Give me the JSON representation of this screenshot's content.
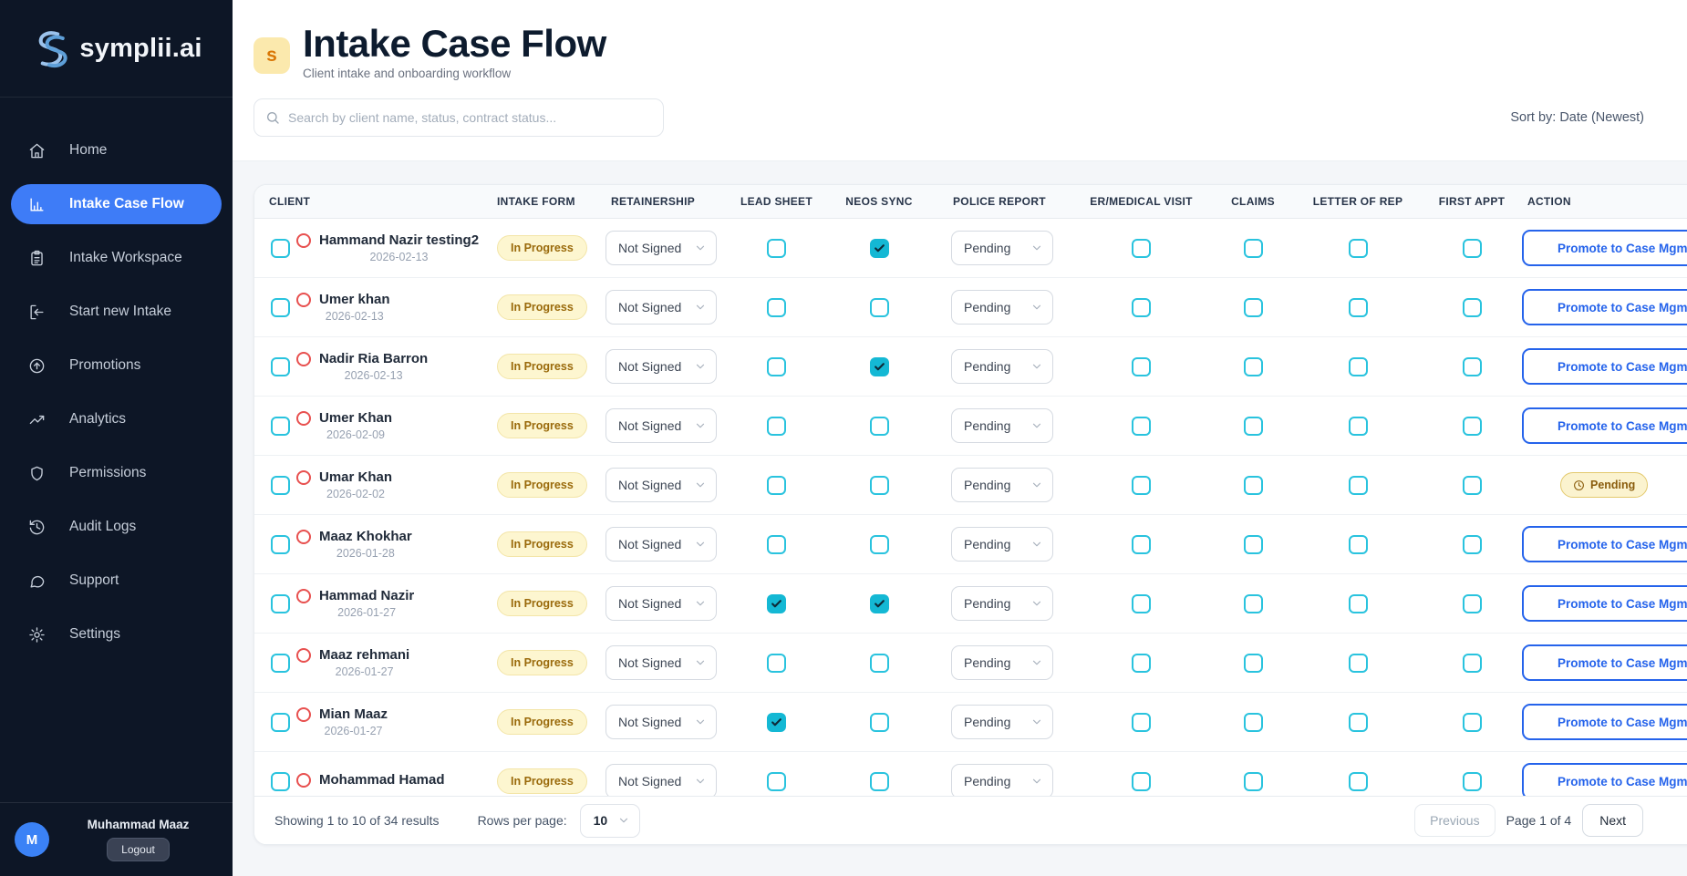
{
  "brand": {
    "logo_text": "symplii.ai"
  },
  "sidebar": {
    "items": [
      {
        "label": "Home",
        "icon": "home",
        "active": false
      },
      {
        "label": "Intake Case Flow",
        "icon": "bar-chart",
        "active": true
      },
      {
        "label": "Intake Workspace",
        "icon": "clipboard",
        "active": false
      },
      {
        "label": "Start new Intake",
        "icon": "log-in",
        "active": false
      },
      {
        "label": "Promotions",
        "icon": "arrow-up-circle",
        "active": false
      },
      {
        "label": "Analytics",
        "icon": "trending-up",
        "active": false
      },
      {
        "label": "Permissions",
        "icon": "shield",
        "active": false
      },
      {
        "label": "Audit Logs",
        "icon": "history",
        "active": false
      },
      {
        "label": "Support",
        "icon": "message-circle",
        "active": false
      },
      {
        "label": "Settings",
        "icon": "gear",
        "active": false
      }
    ],
    "user": {
      "initial": "M",
      "name": "Muhammad Maaz",
      "logout_label": "Logout"
    }
  },
  "header": {
    "app_icon_letter": "s",
    "title": "Intake Case Flow",
    "subtitle": "Client intake and onboarding workflow",
    "search_placeholder": "Search by client name, status, contract status...",
    "sort_label": "Sort by: Date (Newest)"
  },
  "table": {
    "columns": [
      "CLIENT",
      "INTAKE FORM",
      "RETAINERSHIP",
      "LEAD SHEET",
      "NEOS SYNC",
      "POLICE REPORT",
      "ER/MEDICAL VISIT",
      "CLAIMS",
      "LETTER OF REP",
      "FIRST APPT",
      "ACTION"
    ],
    "rows": [
      {
        "name": "Hammand Nazir testing2",
        "date": "2026-02-13",
        "intake_form": "In Progress",
        "retainership": "Not Signed",
        "lead_sheet": false,
        "neos_sync": true,
        "police_report": "Pending",
        "er_medical_visit": false,
        "claims": false,
        "letter_of_rep": false,
        "first_appt": false,
        "action": {
          "type": "button",
          "label": "Promote to Case Mgmt"
        }
      },
      {
        "name": "Umer khan",
        "date": "2026-02-13",
        "intake_form": "In Progress",
        "retainership": "Not Signed",
        "lead_sheet": false,
        "neos_sync": false,
        "police_report": "Pending",
        "er_medical_visit": false,
        "claims": false,
        "letter_of_rep": false,
        "first_appt": false,
        "action": {
          "type": "button",
          "label": "Promote to Case Mgmt"
        }
      },
      {
        "name": "Nadir Ria Barron",
        "date": "2026-02-13",
        "intake_form": "In Progress",
        "retainership": "Not Signed",
        "lead_sheet": false,
        "neos_sync": true,
        "police_report": "Pending",
        "er_medical_visit": false,
        "claims": false,
        "letter_of_rep": false,
        "first_appt": false,
        "action": {
          "type": "button",
          "label": "Promote to Case Mgmt"
        }
      },
      {
        "name": "Umer Khan",
        "date": "2026-02-09",
        "intake_form": "In Progress",
        "retainership": "Not Signed",
        "lead_sheet": false,
        "neos_sync": false,
        "police_report": "Pending",
        "er_medical_visit": false,
        "claims": false,
        "letter_of_rep": false,
        "first_appt": false,
        "action": {
          "type": "button",
          "label": "Promote to Case Mgmt"
        }
      },
      {
        "name": "Umar Khan",
        "date": "2026-02-02",
        "intake_form": "In Progress",
        "retainership": "Not Signed",
        "lead_sheet": false,
        "neos_sync": false,
        "police_report": "Pending",
        "er_medical_visit": false,
        "claims": false,
        "letter_of_rep": false,
        "first_appt": false,
        "action": {
          "type": "badge",
          "label": "Pending"
        }
      },
      {
        "name": "Maaz Khokhar",
        "date": "2026-01-28",
        "intake_form": "In Progress",
        "retainership": "Not Signed",
        "lead_sheet": false,
        "neos_sync": false,
        "police_report": "Pending",
        "er_medical_visit": false,
        "claims": false,
        "letter_of_rep": false,
        "first_appt": false,
        "action": {
          "type": "button",
          "label": "Promote to Case Mgmt"
        }
      },
      {
        "name": "Hammad Nazir",
        "date": "2026-01-27",
        "intake_form": "In Progress",
        "retainership": "Not Signed",
        "lead_sheet": true,
        "neos_sync": true,
        "police_report": "Pending",
        "er_medical_visit": false,
        "claims": false,
        "letter_of_rep": false,
        "first_appt": false,
        "action": {
          "type": "button",
          "label": "Promote to Case Mgmt"
        }
      },
      {
        "name": "Maaz rehmani",
        "date": "2026-01-27",
        "intake_form": "In Progress",
        "retainership": "Not Signed",
        "lead_sheet": false,
        "neos_sync": false,
        "police_report": "Pending",
        "er_medical_visit": false,
        "claims": false,
        "letter_of_rep": false,
        "first_appt": false,
        "action": {
          "type": "button",
          "label": "Promote to Case Mgmt"
        }
      },
      {
        "name": "Mian Maaz",
        "date": "2026-01-27",
        "intake_form": "In Progress",
        "retainership": "Not Signed",
        "lead_sheet": true,
        "neos_sync": false,
        "police_report": "Pending",
        "er_medical_visit": false,
        "claims": false,
        "letter_of_rep": false,
        "first_appt": false,
        "action": {
          "type": "button",
          "label": "Promote to Case Mgmt"
        }
      },
      {
        "name": "Mohammad Hamad",
        "date": "",
        "intake_form": "In Progress",
        "retainership": "Not Signed",
        "lead_sheet": false,
        "neos_sync": false,
        "police_report": "Pending",
        "er_medical_visit": false,
        "claims": false,
        "letter_of_rep": false,
        "first_appt": false,
        "action": {
          "type": "button",
          "label": "Promote to Case Mgmt"
        }
      }
    ]
  },
  "footer": {
    "showing_text": "Showing 1 to 10 of 34 results",
    "rows_per_page_label": "Rows per page:",
    "rows_per_page_value": "10",
    "previous_label": "Previous",
    "page_label": "Page 1 of 4",
    "next_label": "Next"
  },
  "colors": {
    "sidebar_bg": "#0d1626",
    "accent_blue": "#3e7cf7",
    "checkbox_cyan": "#14b8d4",
    "badge_yellow_bg": "#fdf6d0",
    "badge_yellow_text": "#9a6a0b",
    "promote_blue": "#2563eb",
    "status_circle_red": "#e8504f",
    "app_icon_bg": "#fbe9ad",
    "app_icon_text": "#d97706"
  }
}
